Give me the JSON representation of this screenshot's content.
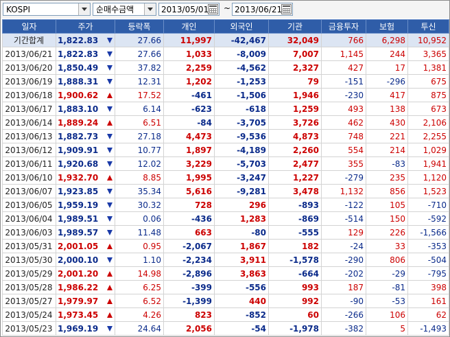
{
  "toolbar": {
    "market": "KOSPI",
    "metric": "순매수금액",
    "date_from": "2013/05/01",
    "date_to": "2013/06/21",
    "separator": "~"
  },
  "columns": [
    "일자",
    "주가",
    "등락폭",
    "개인",
    "외국인",
    "기관",
    "금융투자",
    "보험",
    "투신"
  ],
  "rows": [
    {
      "date": "기간합계",
      "price": "1,822.83",
      "dir": "down",
      "chg": "27.66",
      "indiv": "11,997",
      "foreign": "-42,467",
      "inst": "32,049",
      "fin": "766",
      "ins": "6,298",
      "trust": "10,952",
      "total": true
    },
    {
      "date": "2013/06/21",
      "price": "1,822.83",
      "dir": "down",
      "chg": "27.66",
      "indiv": "1,033",
      "foreign": "-8,009",
      "inst": "7,007",
      "fin": "1,145",
      "ins": "244",
      "trust": "3,365"
    },
    {
      "date": "2013/06/20",
      "price": "1,850.49",
      "dir": "down",
      "chg": "37.82",
      "indiv": "2,259",
      "foreign": "-4,562",
      "inst": "2,327",
      "fin": "427",
      "ins": "17",
      "trust": "1,381"
    },
    {
      "date": "2013/06/19",
      "price": "1,888.31",
      "dir": "down",
      "chg": "12.31",
      "indiv": "1,202",
      "foreign": "-1,253",
      "inst": "79",
      "fin": "-151",
      "ins": "-296",
      "trust": "675"
    },
    {
      "date": "2013/06/18",
      "price": "1,900.62",
      "dir": "up",
      "chg": "17.52",
      "indiv": "-461",
      "foreign": "-1,506",
      "inst": "1,946",
      "fin": "-230",
      "ins": "417",
      "trust": "875"
    },
    {
      "date": "2013/06/17",
      "price": "1,883.10",
      "dir": "down",
      "chg": "6.14",
      "indiv": "-623",
      "foreign": "-618",
      "inst": "1,259",
      "fin": "493",
      "ins": "138",
      "trust": "673"
    },
    {
      "date": "2013/06/14",
      "price": "1,889.24",
      "dir": "up",
      "chg": "6.51",
      "indiv": "-84",
      "foreign": "-3,705",
      "inst": "3,726",
      "fin": "462",
      "ins": "430",
      "trust": "2,106"
    },
    {
      "date": "2013/06/13",
      "price": "1,882.73",
      "dir": "down",
      "chg": "27.18",
      "indiv": "4,473",
      "foreign": "-9,536",
      "inst": "4,873",
      "fin": "748",
      "ins": "221",
      "trust": "2,255"
    },
    {
      "date": "2013/06/12",
      "price": "1,909.91",
      "dir": "down",
      "chg": "10.77",
      "indiv": "1,897",
      "foreign": "-4,189",
      "inst": "2,260",
      "fin": "554",
      "ins": "214",
      "trust": "1,029"
    },
    {
      "date": "2013/06/11",
      "price": "1,920.68",
      "dir": "down",
      "chg": "12.02",
      "indiv": "3,229",
      "foreign": "-5,703",
      "inst": "2,477",
      "fin": "355",
      "ins": "-83",
      "trust": "1,941"
    },
    {
      "date": "2013/06/10",
      "price": "1,932.70",
      "dir": "up",
      "chg": "8.85",
      "indiv": "1,995",
      "foreign": "-3,247",
      "inst": "1,227",
      "fin": "-279",
      "ins": "235",
      "trust": "1,120"
    },
    {
      "date": "2013/06/07",
      "price": "1,923.85",
      "dir": "down",
      "chg": "35.34",
      "indiv": "5,616",
      "foreign": "-9,281",
      "inst": "3,478",
      "fin": "1,132",
      "ins": "856",
      "trust": "1,523"
    },
    {
      "date": "2013/06/05",
      "price": "1,959.19",
      "dir": "down",
      "chg": "30.32",
      "indiv": "728",
      "foreign": "296",
      "inst": "-893",
      "fin": "-122",
      "ins": "105",
      "trust": "-710"
    },
    {
      "date": "2013/06/04",
      "price": "1,989.51",
      "dir": "down",
      "chg": "0.06",
      "indiv": "-436",
      "foreign": "1,283",
      "inst": "-869",
      "fin": "-514",
      "ins": "150",
      "trust": "-592"
    },
    {
      "date": "2013/06/03",
      "price": "1,989.57",
      "dir": "down",
      "chg": "11.48",
      "indiv": "663",
      "foreign": "-80",
      "inst": "-555",
      "fin": "129",
      "ins": "226",
      "trust": "-1,566"
    },
    {
      "date": "2013/05/31",
      "price": "2,001.05",
      "dir": "up",
      "chg": "0.95",
      "indiv": "-2,067",
      "foreign": "1,867",
      "inst": "182",
      "fin": "-24",
      "ins": "33",
      "trust": "-353"
    },
    {
      "date": "2013/05/30",
      "price": "2,000.10",
      "dir": "down",
      "chg": "1.10",
      "indiv": "-2,234",
      "foreign": "3,911",
      "inst": "-1,578",
      "fin": "-290",
      "ins": "806",
      "trust": "-504"
    },
    {
      "date": "2013/05/29",
      "price": "2,001.20",
      "dir": "up",
      "chg": "14.98",
      "indiv": "-2,896",
      "foreign": "3,863",
      "inst": "-664",
      "fin": "-202",
      "ins": "-29",
      "trust": "-795"
    },
    {
      "date": "2013/05/28",
      "price": "1,986.22",
      "dir": "up",
      "chg": "6.25",
      "indiv": "-399",
      "foreign": "-556",
      "inst": "993",
      "fin": "187",
      "ins": "-81",
      "trust": "398"
    },
    {
      "date": "2013/05/27",
      "price": "1,979.97",
      "dir": "up",
      "chg": "6.52",
      "indiv": "-1,399",
      "foreign": "440",
      "inst": "992",
      "fin": "-90",
      "ins": "-53",
      "trust": "161"
    },
    {
      "date": "2013/05/24",
      "price": "1,973.45",
      "dir": "up",
      "chg": "4.26",
      "indiv": "823",
      "foreign": "-852",
      "inst": "60",
      "fin": "-266",
      "ins": "106",
      "trust": "62"
    },
    {
      "date": "2013/05/23",
      "price": "1,969.19",
      "dir": "down",
      "chg": "24.64",
      "indiv": "2,056",
      "foreign": "-54",
      "inst": "-1,978",
      "fin": "-382",
      "ins": "5",
      "trust": "-1,493"
    }
  ]
}
